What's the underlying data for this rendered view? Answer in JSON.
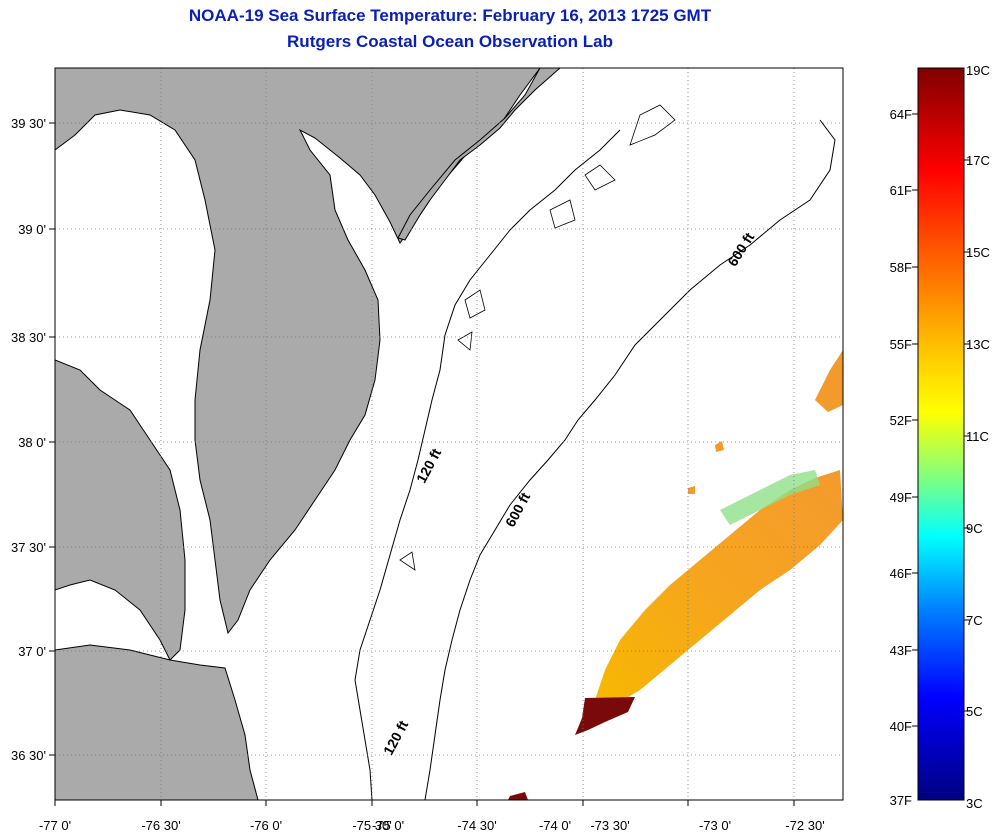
{
  "title": {
    "line1": "NOAA-19 Sea Surface Temperature:  February 16, 2013 1725 GMT",
    "line2": "Rutgers Coastal Ocean Observation Lab"
  },
  "map": {
    "lon_labels": [
      "-77 0'",
      "-76 30'",
      "-76 0'",
      "-75 30'",
      "-75 0'",
      "-74 30'",
      "-74 0'",
      "-73 30'",
      "-73 0'",
      "-72 30'"
    ],
    "lat_labels": [
      "39 30'",
      "39 0'",
      "38 30'",
      "38 0'",
      "37 30'",
      "37 0'",
      "36 30'"
    ],
    "contours": [
      "600 ft",
      "120 ft",
      "600 ft",
      "120 ft"
    ],
    "colors": {
      "land": "#aaaaaa",
      "water": "#ffffff",
      "grid": "#777777"
    }
  },
  "colorbar": {
    "fahrenheit": [
      "64F",
      "61F",
      "58F",
      "55F",
      "52F",
      "49F",
      "46F",
      "43F",
      "40F",
      "37F"
    ],
    "celsius": [
      "19C",
      "17C",
      "15C",
      "13C",
      "11C",
      "9C",
      "7C",
      "5C",
      "3C"
    ],
    "stops": [
      "#800000",
      "#ff0000",
      "#ff8000",
      "#ffff00",
      "#00ffff",
      "#0080ff",
      "#0000ff",
      "#000080"
    ]
  }
}
